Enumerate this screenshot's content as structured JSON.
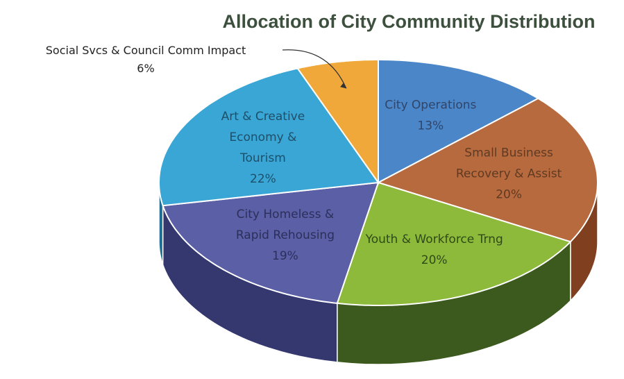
{
  "chart_data": {
    "type": "pie",
    "title": "Allocation of City Community Distribution",
    "slices": [
      {
        "lines": [
          "City Operations",
          "13%"
        ],
        "value": 13,
        "color": "#4a86c8",
        "side": "#2f5f97",
        "text_color": "#30456a"
      },
      {
        "lines": [
          "Small Business",
          "Recovery & Assist",
          "20%"
        ],
        "value": 20,
        "color": "#b86a3f",
        "side": "#80401f",
        "text_color": "#5e3a22"
      },
      {
        "lines": [
          "Youth & Workforce Trng",
          "20%"
        ],
        "value": 20,
        "color": "#8dba3a",
        "side": "#3c5a1e",
        "text_color": "#2e4a18"
      },
      {
        "lines": [
          "City Homeless &",
          "Rapid Rehousing",
          "19%"
        ],
        "value": 19,
        "color": "#5a5fa6",
        "side": "#34386e",
        "text_color": "#2c2f5a"
      },
      {
        "lines": [
          "Art & Creative",
          "Economy &",
          "Tourism",
          "22%"
        ],
        "value": 22,
        "color": "#3aa6d6",
        "side": "#1f6d92",
        "text_color": "#1d4f69"
      },
      {
        "lines": [
          "Social Svcs & Council Comm Impact",
          "6%"
        ],
        "value": 6,
        "color": "#f0a83a",
        "side": "#b57514",
        "text_color": "#222222",
        "external": true
      }
    ]
  }
}
